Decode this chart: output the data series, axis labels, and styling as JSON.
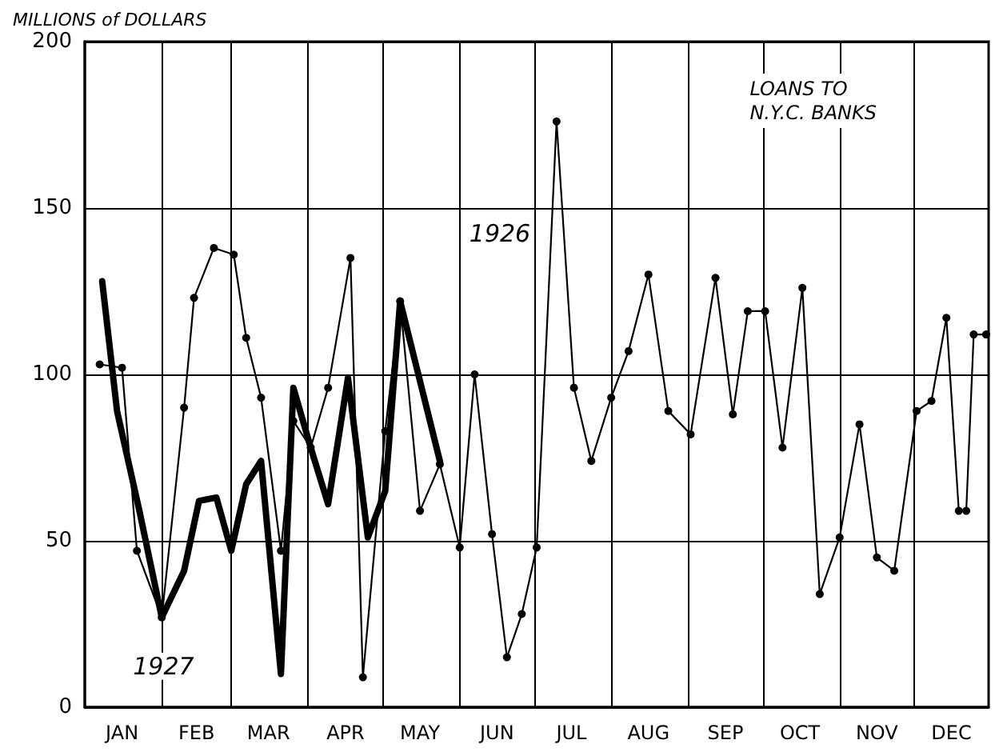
{
  "chart_data": {
    "type": "line",
    "ylabel": "MILLIONS of DOLLARS",
    "annotations": [
      "LOANS TO\nN.Y.C. BANKS"
    ],
    "xlim": [
      "--01-01",
      "--12-31"
    ],
    "xticks": [
      {
        "value": "--01-16",
        "label": "JAN"
      },
      {
        "value": "--02-15",
        "label": "FEB"
      },
      {
        "value": "--03-16",
        "label": "MAR"
      },
      {
        "value": "--04-16",
        "label": "APR"
      },
      {
        "value": "--05-16",
        "label": "MAY"
      },
      {
        "value": "--06-16",
        "label": "JUN"
      },
      {
        "value": "--07-16",
        "label": "JUL"
      },
      {
        "value": "--08-16",
        "label": "AUG"
      },
      {
        "value": "--09-16",
        "label": "SEP"
      },
      {
        "value": "--10-16",
        "label": "OCT"
      },
      {
        "value": "--11-16",
        "label": "NOV"
      },
      {
        "value": "--12-16",
        "label": "DEC"
      },
      {
        "value": "--02-01",
        "label": null
      },
      {
        "value": "--03-01",
        "label": null
      },
      {
        "value": "--04-01",
        "label": null
      },
      {
        "value": "--05-01",
        "label": null
      },
      {
        "value": "--06-01",
        "label": null
      },
      {
        "value": "--07-01",
        "label": null
      },
      {
        "value": "--08-01",
        "label": null
      },
      {
        "value": "--09-01",
        "label": null
      },
      {
        "value": "--10-01",
        "label": null
      },
      {
        "value": "--11-01",
        "label": null
      },
      {
        "value": "--12-01",
        "label": null
      }
    ],
    "ylim": [
      0,
      200
    ],
    "yticks": [
      0,
      50,
      100,
      150,
      200
    ],
    "grid": true,
    "series": [
      {
        "name": "1926",
        "color": "#000000",
        "marker": "circle",
        "x": [
          "--01-07",
          "--01-16",
          "--01-22",
          "--02-01",
          "--02-10",
          "--02-14",
          "--02-22",
          "--03-02",
          "--03-07",
          "--03-13",
          "--03-21",
          "--03-26",
          "--04-02",
          "--04-09",
          "--04-18",
          "--04-23",
          "--05-02",
          "--05-08",
          "--05-16",
          "--05-24",
          "--06-01",
          "--06-07",
          "--06-14",
          "--06-20",
          "--06-26",
          "--07-02",
          "--07-10",
          "--07-17",
          "--07-24",
          "--08-01",
          "--08-08",
          "--08-16",
          "--08-24",
          "--09-02",
          "--09-12",
          "--09-19",
          "--09-25",
          "--10-02",
          "--10-09",
          "--10-17",
          "--10-24",
          "--11-01",
          "--11-09",
          "--11-16",
          "--11-23",
          "--12-02",
          "--12-08",
          "--12-14",
          "--12-19",
          "--12-22",
          "--12-25",
          "--12-30"
        ],
        "values": [
          103,
          102,
          47,
          27,
          90,
          123,
          138,
          136,
          111,
          93,
          47,
          86,
          78,
          96,
          135,
          9,
          83,
          122,
          59,
          73,
          48,
          100,
          52,
          15,
          28,
          48,
          176,
          96,
          74,
          93,
          107,
          130,
          89,
          82,
          129,
          88,
          119,
          119,
          78,
          126,
          34,
          51,
          85,
          45,
          41,
          89,
          92,
          117,
          59,
          59,
          112,
          112
        ]
      },
      {
        "name": "1927",
        "color": "#000000",
        "marker": "none",
        "x": [
          "--01-08",
          "--01-14",
          "--01-23",
          "--02-01",
          "--02-10",
          "--02-16",
          "--02-23",
          "--03-01",
          "--03-07",
          "--03-13",
          "--03-21",
          "--03-26",
          "--04-02",
          "--04-09",
          "--04-17",
          "--04-25",
          "--05-02",
          "--05-08",
          "--05-24"
        ],
        "values": [
          128,
          89,
          59,
          27,
          41,
          62,
          63,
          47,
          67,
          74,
          10,
          96,
          78,
          61,
          99,
          51,
          65,
          122,
          74
        ]
      }
    ]
  }
}
